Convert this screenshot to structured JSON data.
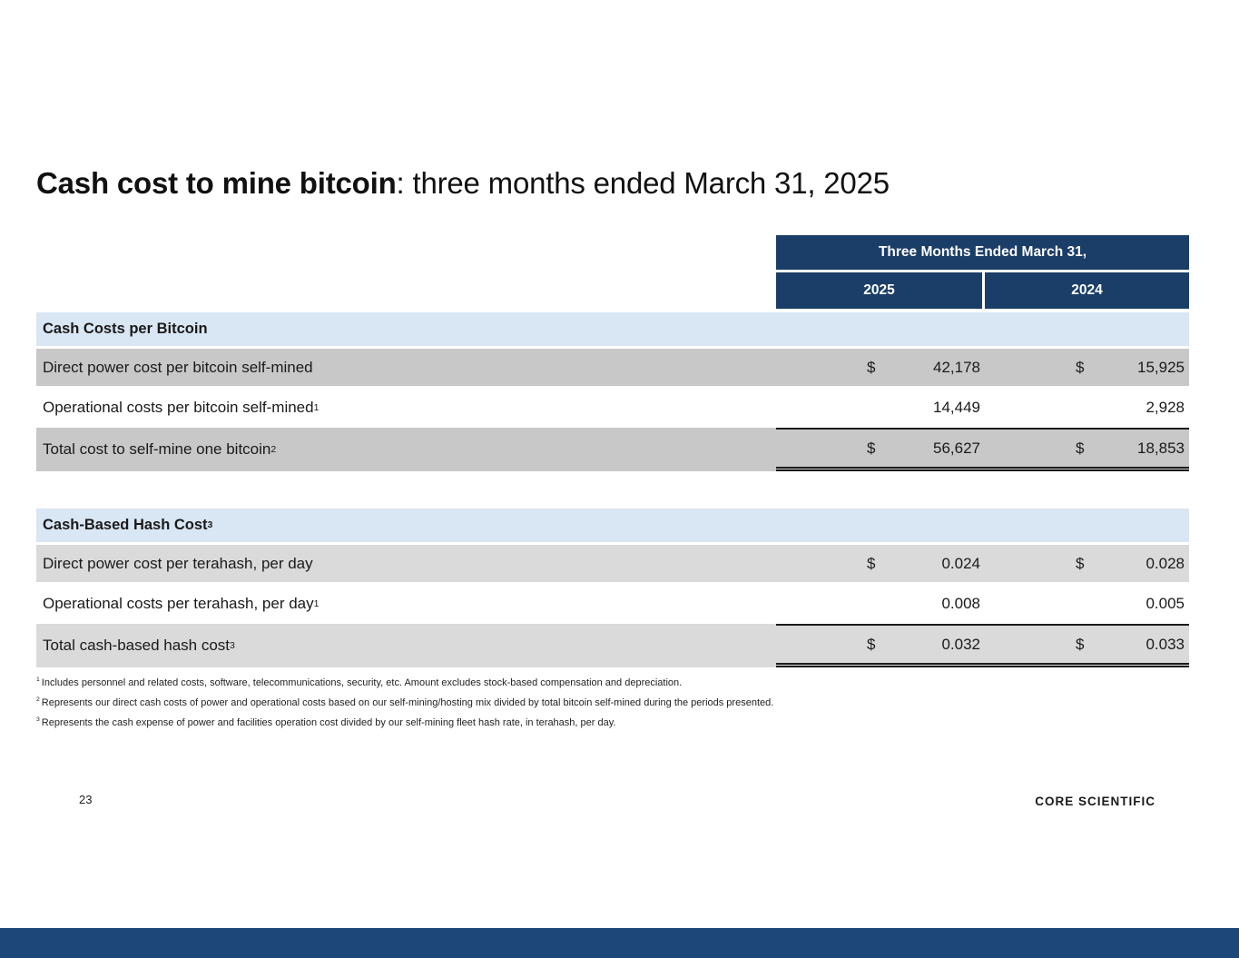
{
  "title": {
    "bold": "Cash cost to mine bitcoin",
    "rest": ": three months ended March 31, 2025"
  },
  "table": {
    "header": {
      "title": "Three Months Ended March 31,",
      "col_2025": "2025",
      "col_2024": "2024"
    },
    "sections": [
      {
        "heading": "Cash Costs per Bitcoin",
        "heading_sup": "",
        "rows": [
          {
            "label": "Direct power cost per bitcoin self-mined",
            "sup": "",
            "cur1": "$",
            "val1": "42,178",
            "cur2": "$",
            "val2": "15,925"
          },
          {
            "label": "Operational costs per bitcoin self-mined",
            "sup": "1",
            "cur1": "",
            "val1": "14,449",
            "cur2": "",
            "val2": "2,928"
          },
          {
            "label": "Total cost to self-mine one bitcoin",
            "sup": "2",
            "cur1": "$",
            "val1": "56,627",
            "cur2": "$",
            "val2": "18,853"
          }
        ]
      },
      {
        "heading": "Cash-Based Hash Cost",
        "heading_sup": "3",
        "rows": [
          {
            "label": "Direct power cost per terahash, per day",
            "sup": "",
            "cur1": "$",
            "val1": "0.024",
            "cur2": "$",
            "val2": "0.028"
          },
          {
            "label": "Operational costs per terahash, per day",
            "sup": "1",
            "cur1": "",
            "val1": "0.008",
            "cur2": "",
            "val2": "0.005"
          },
          {
            "label": "Total cash-based hash cost",
            "sup": "3",
            "cur1": "$",
            "val1": "0.032",
            "cur2": "$",
            "val2": "0.033"
          }
        ]
      }
    ]
  },
  "footnotes": [
    {
      "sup": "1",
      "text": "Includes personnel and related costs, software, telecommunications, security, etc. Amount excludes stock-based compensation and depreciation."
    },
    {
      "sup": "2",
      "text": "Represents our direct cash costs of power and operational costs based on our self-mining/hosting mix divided by total bitcoin self-mined during the periods presented."
    },
    {
      "sup": "3",
      "text": "Represents the cash expense of power and facilities operation cost divided by our self-mining fleet hash rate, in terahash, per day."
    }
  ],
  "footer": {
    "page_number": "23",
    "logo": "CORE SCIENTIFIC"
  },
  "colors": {
    "navy_header": "#1B3E68",
    "section_band_blue": "#D9E6F3",
    "row_gray_section1": "#C8C8C8",
    "row_gray_section2": "#DADADA",
    "bottom_bar_navy": "#1C4778",
    "text": "#1A1A1A"
  }
}
